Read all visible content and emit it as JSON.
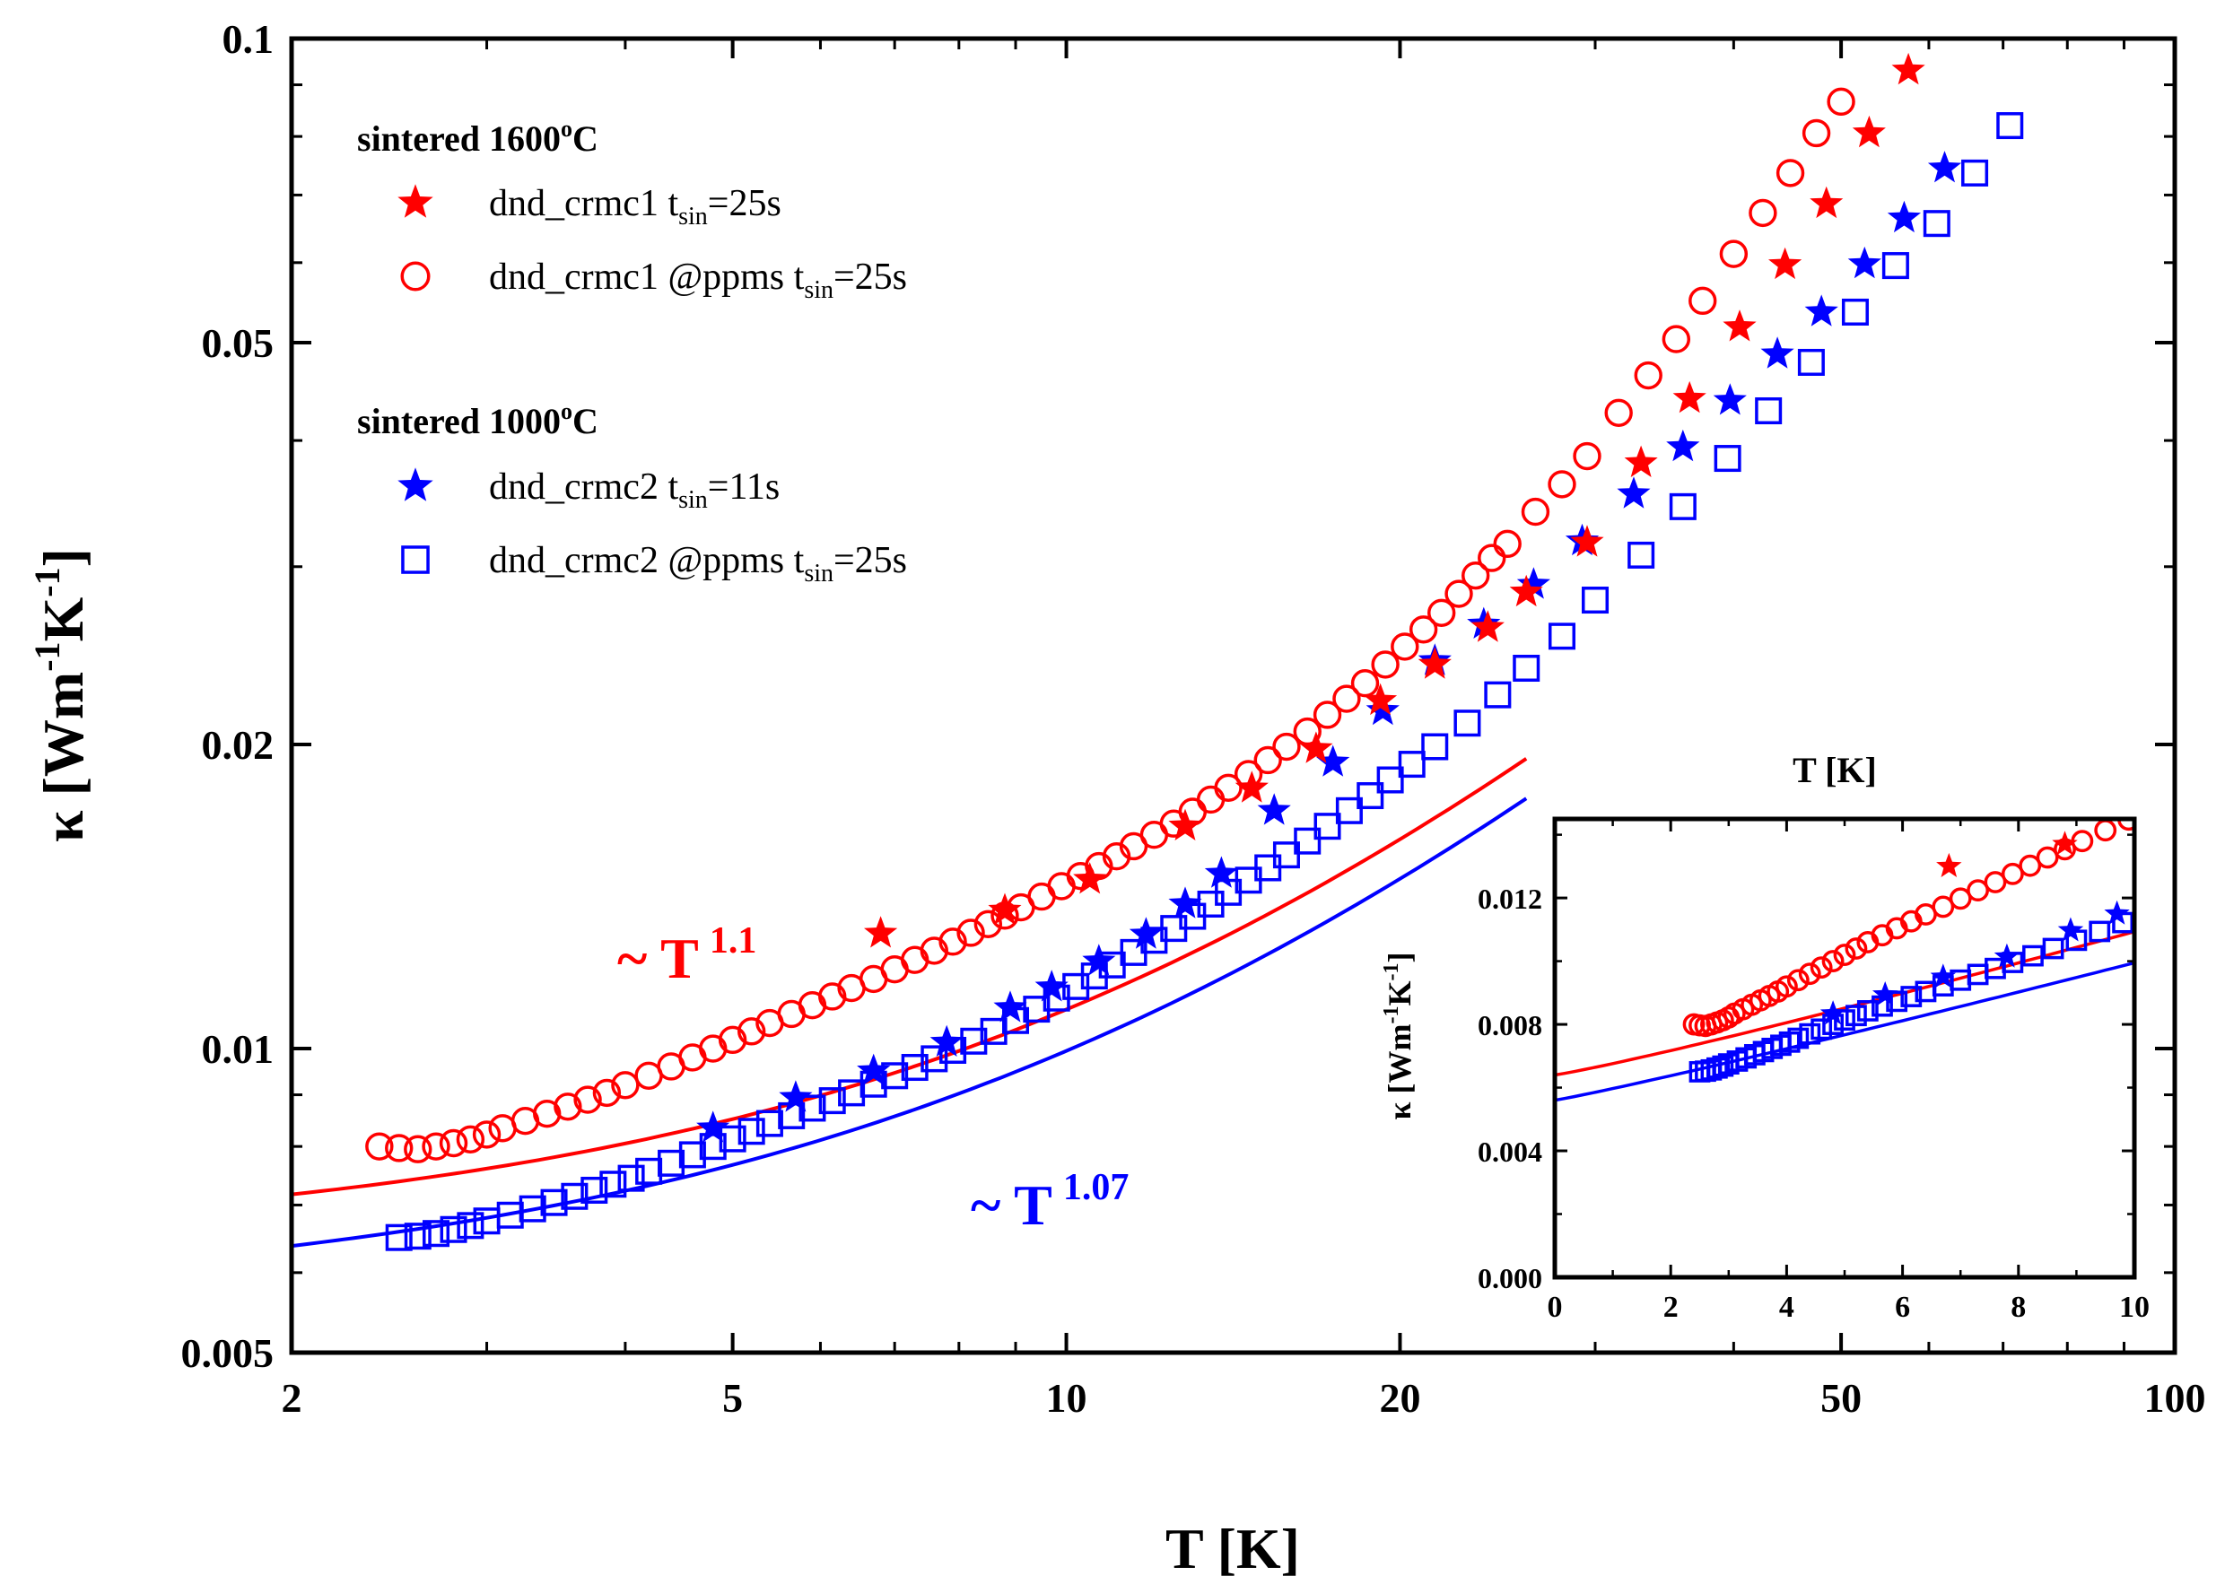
{
  "chart_data": {
    "type": "scatter",
    "x_scale": "log",
    "y_scale": "log",
    "xlabel": "T [K]",
    "ylabel_main": "κ [Wm",
    "ylabel_sup1": "-1",
    "ylabel_mid": "K",
    "ylabel_sup2": "-1",
    "ylabel_end": "]",
    "xlim": [
      2,
      100
    ],
    "ylim": [
      0.005,
      0.1
    ],
    "xticks": [
      2,
      5,
      10,
      20,
      50,
      100
    ],
    "xtick_labels": [
      "2",
      "5",
      "10",
      "20",
      "50",
      "100"
    ],
    "yticks": [
      0.005,
      0.01,
      0.02,
      0.05,
      0.1
    ],
    "ytick_labels": [
      "0.005",
      "0.01",
      "0.02",
      "0.05",
      "0.1"
    ],
    "colors": {
      "red": "#ff0000",
      "blue": "#0000ff"
    },
    "legend": {
      "group1_title": "sintered 1600",
      "group1_sup": "o",
      "group1_unit": "C",
      "group2_title": "sintered 1000",
      "group2_sup": "o",
      "group2_unit": "C",
      "entries": [
        {
          "name": "dnd_crmc1 t",
          "sub": "sin",
          "rest": "=25s",
          "marker": "star",
          "color": "#ff0000"
        },
        {
          "name": "dnd_crmc1 @ppms t",
          "sub": "sin",
          "rest": "=25s",
          "marker": "circle",
          "color": "#ff0000"
        },
        {
          "name": "dnd_crmc2 t",
          "sub": "sin",
          "rest": "=11s",
          "marker": "star",
          "color": "#0000ff"
        },
        {
          "name": "dnd_crmc2 @ppms t",
          "sub": "sin",
          "rest": "=25s",
          "marker": "square",
          "color": "#0000ff"
        }
      ]
    },
    "annotations": {
      "red_fit": {
        "prefix": "~ T",
        "exponent": "1.1"
      },
      "blue_fit": {
        "prefix": "~ T",
        "exponent": "1.07"
      }
    },
    "series": [
      {
        "name": "dnd_crmc1 t_sin=25s",
        "marker": "star",
        "color": "#ff0000",
        "x": [
          6.8,
          8.8,
          10.5,
          12.8,
          14.7,
          16.8,
          19.2,
          21.5,
          24.0,
          26.0,
          29.5,
          33.0,
          36.5,
          40.5,
          44.5,
          48.5,
          53.0,
          57.5
        ],
        "y": [
          0.013,
          0.0137,
          0.0147,
          0.0166,
          0.0181,
          0.0198,
          0.0221,
          0.024,
          0.0261,
          0.0283,
          0.0317,
          0.038,
          0.044,
          0.0518,
          0.0597,
          0.0686,
          0.0806,
          0.093
        ]
      },
      {
        "name": "dnd_crmc1 @ppms t_sin=25s",
        "marker": "circle",
        "color": "#ff0000",
        "x": [
          2.4,
          2.5,
          2.6,
          2.7,
          2.8,
          2.9,
          3.0,
          3.1,
          3.25,
          3.4,
          3.55,
          3.7,
          3.85,
          4.0,
          4.2,
          4.4,
          4.6,
          4.8,
          5.0,
          5.2,
          5.4,
          5.65,
          5.9,
          6.15,
          6.4,
          6.7,
          7.0,
          7.3,
          7.6,
          7.9,
          8.2,
          8.5,
          8.8,
          9.1,
          9.5,
          9.9,
          10.3,
          10.7,
          11.1,
          11.5,
          12.0,
          12.5,
          13.0,
          13.5,
          14.0,
          14.6,
          15.2,
          15.8,
          16.5,
          17.2,
          17.9,
          18.6,
          19.4,
          20.2,
          21.0,
          21.8,
          22.6,
          23.4,
          24.2,
          25.0,
          26.5,
          28.0,
          29.5,
          31.5,
          33.5,
          35.5,
          37.5,
          40.0,
          42.5,
          45.0,
          47.5,
          50.0
        ],
        "y": [
          0.008,
          0.00797,
          0.00795,
          0.008,
          0.00806,
          0.00813,
          0.00822,
          0.00834,
          0.00848,
          0.00862,
          0.00876,
          0.0089,
          0.00904,
          0.0092,
          0.0094,
          0.0096,
          0.0098,
          0.01,
          0.0102,
          0.0104,
          0.0106,
          0.01082,
          0.01104,
          0.01126,
          0.01148,
          0.01172,
          0.01198,
          0.01224,
          0.0125,
          0.01276,
          0.01302,
          0.01328,
          0.01354,
          0.0138,
          0.01414,
          0.01448,
          0.01482,
          0.01516,
          0.0155,
          0.01586,
          0.01628,
          0.0167,
          0.01716,
          0.01764,
          0.01812,
          0.0187,
          0.0193,
          0.0199,
          0.0206,
          0.0214,
          0.0222,
          0.023,
          0.024,
          0.025,
          0.026,
          0.027,
          0.0282,
          0.0294,
          0.0306,
          0.0316,
          0.034,
          0.0362,
          0.0386,
          0.0426,
          0.0464,
          0.0504,
          0.055,
          0.0612,
          0.0672,
          0.0736,
          0.0806,
          0.0866
        ]
      },
      {
        "name": "dnd_crmc2 t_sin=11s",
        "marker": "star",
        "color": "#0000ff",
        "x": [
          4.8,
          5.7,
          6.7,
          7.8,
          8.9,
          9.7,
          10.7,
          11.8,
          12.8,
          13.8,
          15.4,
          17.4,
          19.3,
          21.5,
          23.8,
          26.4,
          29.2,
          32.5,
          36.0,
          39.7,
          43.8,
          48.0,
          52.5,
          57.0,
          62.0
        ],
        "y": [
          0.00834,
          0.00894,
          0.0095,
          0.01014,
          0.01097,
          0.0115,
          0.0122,
          0.01297,
          0.0139,
          0.0149,
          0.0172,
          0.0192,
          0.0216,
          0.0242,
          0.0263,
          0.0288,
          0.0318,
          0.0354,
          0.0394,
          0.0438,
          0.0487,
          0.0536,
          0.0598,
          0.0664,
          0.0744
        ]
      },
      {
        "name": "dnd_crmc2 @ppms t_sin=25s",
        "marker": "square",
        "color": "#0000ff",
        "x": [
          2.5,
          2.6,
          2.7,
          2.8,
          2.9,
          3.0,
          3.15,
          3.3,
          3.45,
          3.6,
          3.75,
          3.9,
          4.05,
          4.2,
          4.4,
          4.6,
          4.8,
          5.0,
          5.2,
          5.4,
          5.65,
          5.9,
          6.15,
          6.4,
          6.7,
          7.0,
          7.3,
          7.6,
          7.9,
          8.25,
          8.6,
          9.0,
          9.4,
          9.8,
          10.2,
          10.6,
          11.0,
          11.5,
          12.0,
          12.5,
          13.0,
          13.5,
          14.0,
          14.6,
          15.2,
          15.8,
          16.5,
          17.2,
          18.0,
          18.8,
          19.6,
          20.5,
          21.5,
          23.0,
          24.5,
          26.0,
          28.0,
          30.0,
          33.0,
          36.0,
          39.5,
          43.0,
          47.0,
          51.5,
          56.0,
          61.0,
          66.0,
          71.0
        ],
        "y": [
          0.0065,
          0.00652,
          0.00656,
          0.00662,
          0.00668,
          0.00675,
          0.00684,
          0.00694,
          0.00704,
          0.00714,
          0.00724,
          0.00734,
          0.00744,
          0.00756,
          0.0077,
          0.00785,
          0.008,
          0.00814,
          0.00828,
          0.00843,
          0.00858,
          0.00873,
          0.00888,
          0.00904,
          0.00922,
          0.0094,
          0.00958,
          0.00977,
          0.00996,
          0.01017,
          0.0104,
          0.01066,
          0.01094,
          0.01122,
          0.01152,
          0.0118,
          0.0121,
          0.01245,
          0.0128,
          0.01315,
          0.01352,
          0.0139,
          0.01428,
          0.01468,
          0.0151,
          0.01555,
          0.01605,
          0.0166,
          0.0172,
          0.0178,
          0.01845,
          0.01912,
          0.0199,
          0.021,
          0.0224,
          0.0238,
          0.0256,
          0.0278,
          0.0308,
          0.0344,
          0.0384,
          0.0428,
          0.0478,
          0.0536,
          0.0596,
          0.0656,
          0.0736,
          0.082
        ]
      }
    ],
    "fits": [
      {
        "name": "red fit",
        "color": "#ff0000",
        "exponent": 1.1,
        "x_range": [
          2,
          26
        ],
        "a": 0.0064,
        "b": 0.00036
      },
      {
        "name": "blue fit",
        "color": "#0000ff",
        "exponent": 1.07,
        "x_range": [
          2,
          26
        ],
        "a": 0.0056,
        "b": 0.00037
      }
    ],
    "inset": {
      "type": "scatter",
      "x_scale": "linear",
      "y_scale": "linear",
      "xlabel": "T [K]",
      "ylabel_main": "κ [Wm",
      "ylabel_sup1": "-1",
      "ylabel_mid": "K",
      "ylabel_sup2": "-1",
      "ylabel_end": "]",
      "xlim": [
        0,
        10
      ],
      "ylim": [
        0.0,
        0.0145
      ],
      "xticks": [
        0,
        2,
        4,
        6,
        8,
        10
      ],
      "xtick_labels": [
        "0",
        "2",
        "4",
        "6",
        "8",
        "10"
      ],
      "yticks": [
        0.0,
        0.004,
        0.008,
        0.012
      ],
      "ytick_labels": [
        "0.000",
        "0.004",
        "0.008",
        "0.012"
      ]
    }
  }
}
